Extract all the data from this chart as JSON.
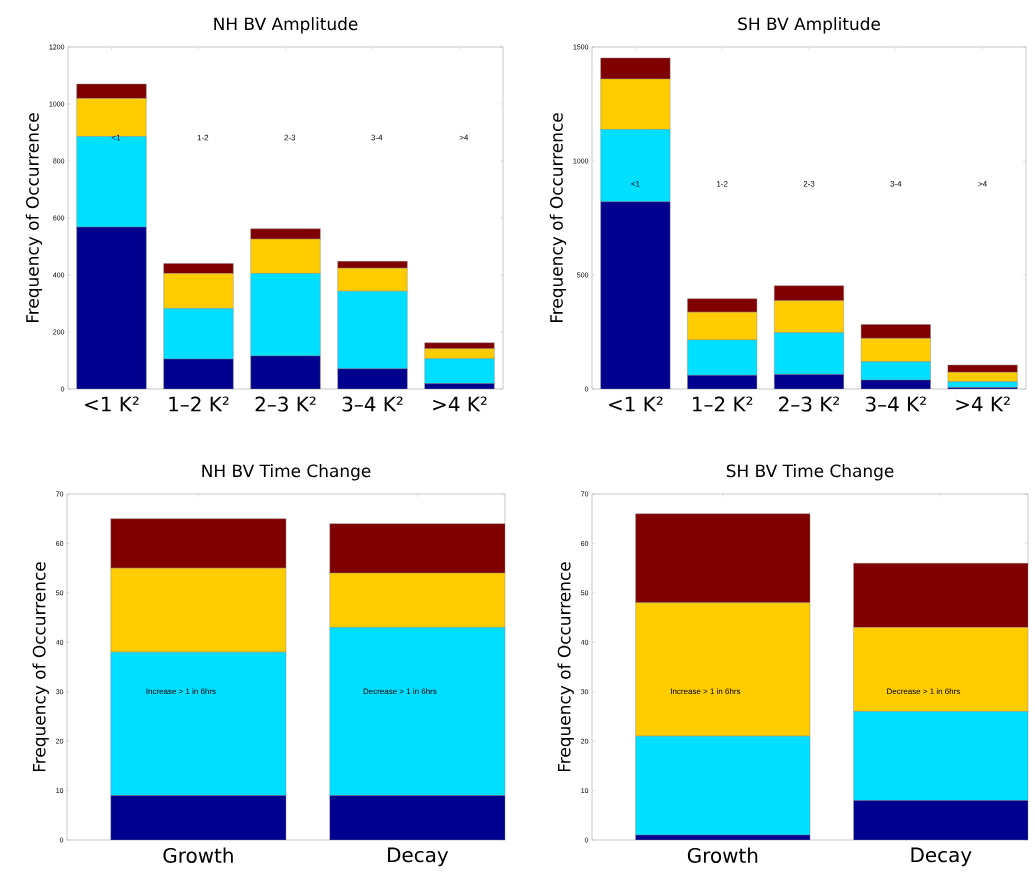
{
  "chart_data": [
    {
      "type": "bar",
      "stacked": true,
      "title": "NH BV Amplitude",
      "ylabel": "Frequency of Occurrence",
      "categories": [
        "<1 K²",
        "1–2 K²",
        "2–3 K²",
        "3–4 K²",
        ">4 K²"
      ],
      "ylim": [
        0,
        1200
      ],
      "yticks": [
        0,
        200,
        400,
        600,
        800,
        1000,
        1200
      ],
      "series": [
        {
          "color": "#00008f",
          "values": [
            568,
            105,
            116,
            71,
            19
          ]
        },
        {
          "color": "#00dfff",
          "values": [
            318,
            177,
            289,
            272,
            87
          ]
        },
        {
          "color": "#ffcc00",
          "values": [
            133,
            123,
            121,
            81,
            35
          ]
        },
        {
          "color": "#800000",
          "values": [
            51,
            35,
            36,
            24,
            21
          ]
        }
      ],
      "annotations": [
        "<1",
        "1-2",
        "2-3",
        "3-4",
        ">4"
      ]
    },
    {
      "type": "bar",
      "stacked": true,
      "title": "SH BV Amplitude",
      "ylabel": "Frequency of Occurrence",
      "categories": [
        "<1 K²",
        "1–2 K²",
        "2–3 K²",
        "3–4 K²",
        ">4 K²"
      ],
      "ylim": [
        0,
        1500
      ],
      "yticks": [
        0,
        500,
        1000,
        1500
      ],
      "series": [
        {
          "color": "#00008f",
          "values": [
            821,
            60,
            64,
            39,
            6
          ]
        },
        {
          "color": "#00dfff",
          "values": [
            317,
            155,
            183,
            81,
            26
          ]
        },
        {
          "color": "#ffcc00",
          "values": [
            222,
            122,
            140,
            102,
            41
          ]
        },
        {
          "color": "#800000",
          "values": [
            92,
            59,
            66,
            61,
            32
          ]
        }
      ],
      "annotations": [
        "<1",
        "1-2",
        "2-3",
        "3-4",
        ">4"
      ]
    },
    {
      "type": "bar",
      "stacked": true,
      "title": "NH BV Time Change",
      "ylabel": "Frequency of Occurrence",
      "categories": [
        "Growth",
        "Decay"
      ],
      "ylim": [
        0,
        70
      ],
      "yticks": [
        0,
        10,
        20,
        30,
        40,
        50,
        60,
        70
      ],
      "series": [
        {
          "color": "#00008f",
          "values": [
            9,
            9
          ]
        },
        {
          "color": "#00dfff",
          "values": [
            29,
            34
          ]
        },
        {
          "color": "#ffcc00",
          "values": [
            17,
            11
          ]
        },
        {
          "color": "#800000",
          "values": [
            10,
            10
          ]
        }
      ],
      "annotations": [
        "Increase > 1 in 6hrs",
        "Decrease > 1 in 6hrs"
      ]
    },
    {
      "type": "bar",
      "stacked": true,
      "title": "SH BV Time Change",
      "ylabel": "Frequency of Occurrence",
      "categories": [
        "Growth",
        "Decay"
      ],
      "ylim": [
        0,
        70
      ],
      "yticks": [
        0,
        10,
        20,
        30,
        40,
        50,
        60,
        70
      ],
      "series": [
        {
          "color": "#00008f",
          "values": [
            1,
            8
          ]
        },
        {
          "color": "#00dfff",
          "values": [
            20,
            18
          ]
        },
        {
          "color": "#ffcc00",
          "values": [
            27,
            17
          ]
        },
        {
          "color": "#800000",
          "values": [
            18,
            13
          ]
        }
      ],
      "annotations": [
        "Increase > 1 in 6hrs",
        "Decrease > 1 in 6hrs"
      ]
    }
  ]
}
